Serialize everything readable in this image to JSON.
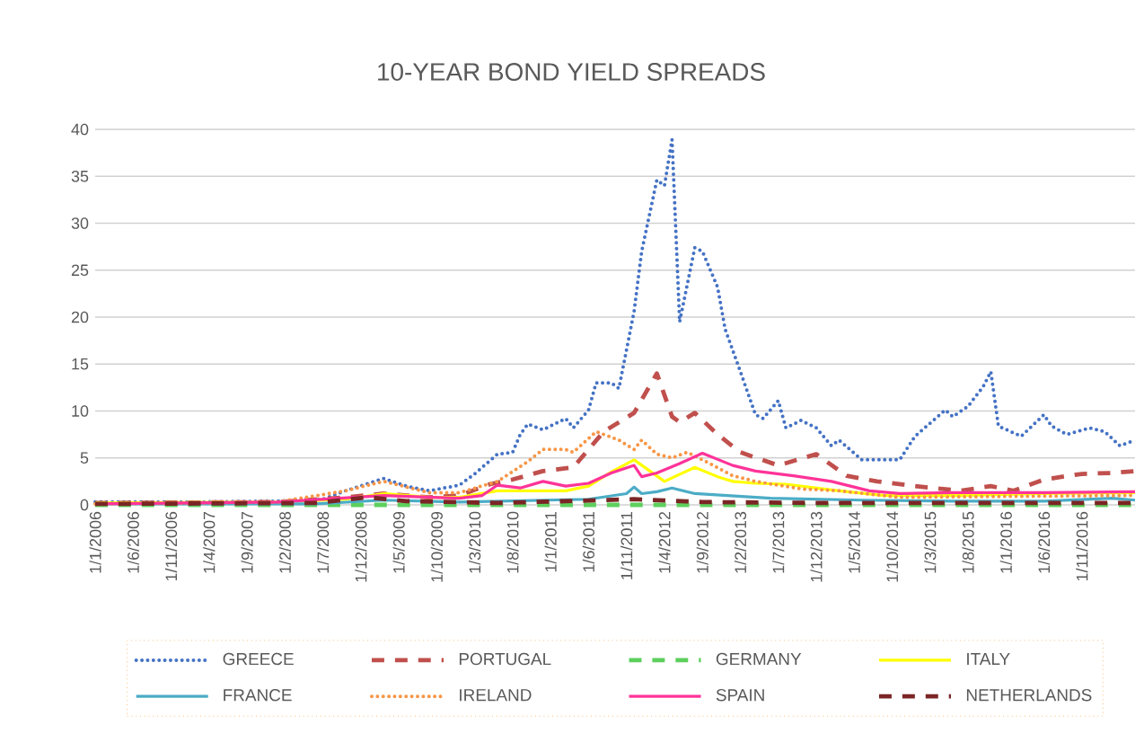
{
  "chart_data": {
    "type": "line",
    "title": "10-YEAR BOND YIELD SPREADS",
    "xlim": [
      "2006-01",
      "2017-06"
    ],
    "xticks": [
      {
        "value": "2006-01",
        "label": "1/1/2006"
      },
      {
        "value": "2006-06",
        "label": "1/6/2006"
      },
      {
        "value": "2006-11",
        "label": "1/11/2006"
      },
      {
        "value": "2007-04",
        "label": "1/4/2007"
      },
      {
        "value": "2007-09",
        "label": "1/9/2007"
      },
      {
        "value": "2008-02",
        "label": "1/2/2008"
      },
      {
        "value": "2008-07",
        "label": "1/7/2008"
      },
      {
        "value": "2008-12",
        "label": "1/12/2008"
      },
      {
        "value": "2009-05",
        "label": "1/5/2009"
      },
      {
        "value": "2009-10",
        "label": "1/10/2009"
      },
      {
        "value": "2010-03",
        "label": "1/3/2010"
      },
      {
        "value": "2010-08",
        "label": "1/8/2010"
      },
      {
        "value": "2011-01",
        "label": "1/1/2011"
      },
      {
        "value": "2011-06",
        "label": "1/6/2011"
      },
      {
        "value": "2011-11",
        "label": "1/11/2011"
      },
      {
        "value": "2012-04",
        "label": "1/4/2012"
      },
      {
        "value": "2012-09",
        "label": "1/9/2012"
      },
      {
        "value": "2013-02",
        "label": "1/2/2013"
      },
      {
        "value": "2013-07",
        "label": "1/7/2013"
      },
      {
        "value": "2013-12",
        "label": "1/12/2013"
      },
      {
        "value": "2014-05",
        "label": "1/5/2014"
      },
      {
        "value": "2014-10",
        "label": "1/10/2014"
      },
      {
        "value": "2015-03",
        "label": "1/3/2015"
      },
      {
        "value": "2015-08",
        "label": "1/8/2015"
      },
      {
        "value": "2016-01",
        "label": "1/1/2016"
      },
      {
        "value": "2016-06",
        "label": "1/6/2016"
      },
      {
        "value": "2016-11",
        "label": "1/11/2016"
      }
    ],
    "ylim": [
      0,
      40
    ],
    "yticks": [
      0,
      5,
      10,
      15,
      20,
      25,
      30,
      35,
      40
    ],
    "grid": "y",
    "legend": "bottom",
    "marker": "none",
    "series": [
      {
        "name": "GREECE",
        "color": "#4472c4",
        "line_style": "dotted",
        "x": [
          "2006-01",
          "2007-01",
          "2008-01",
          "2008-07",
          "2008-10",
          "2009-01",
          "2009-03",
          "2009-06",
          "2009-09",
          "2010-01",
          "2010-03",
          "2010-06",
          "2010-08",
          "2010-09",
          "2010-10",
          "2010-12",
          "2011-03",
          "2011-04",
          "2011-06",
          "2011-07",
          "2011-09",
          "2011-10",
          "2011-12",
          "2012-01",
          "2012-03",
          "2012-04",
          "2012-05",
          "2012-06",
          "2012-08",
          "2012-09",
          "2012-11",
          "2012-12",
          "2013-02",
          "2013-04",
          "2013-05",
          "2013-07",
          "2013-08",
          "2013-10",
          "2013-12",
          "2014-02",
          "2014-03",
          "2014-06",
          "2014-11",
          "2015-01",
          "2015-05",
          "2015-06",
          "2015-08",
          "2015-10",
          "2015-11",
          "2015-12",
          "2016-03",
          "2016-06",
          "2016-07",
          "2016-09",
          "2016-12",
          "2017-02",
          "2017-04",
          "2017-06"
        ],
        "values": [
          0.3,
          0.3,
          0.4,
          0.6,
          1.5,
          2.3,
          2.8,
          2.0,
          1.5,
          2.1,
          3.3,
          5.4,
          5.6,
          7.5,
          8.6,
          8.0,
          9.2,
          8.2,
          10.1,
          13,
          13,
          12.4,
          20.6,
          27,
          34.6,
          34,
          38.9,
          19.5,
          27.4,
          27,
          23.2,
          18.7,
          14.2,
          9.6,
          9.2,
          11.1,
          8.2,
          9.0,
          8.2,
          6.3,
          6.9,
          4.8,
          4.8,
          7.3,
          10.1,
          9.4,
          10.5,
          12.6,
          14.2,
          8.4,
          7.3,
          9.6,
          8.4,
          7.5,
          8.2,
          7.8,
          6.3,
          6.9
        ]
      },
      {
        "name": "PORTUGAL",
        "color": "#c0504d",
        "line_style": "dashed",
        "x": [
          "2006-01",
          "2008-01",
          "2008-10",
          "2009-03",
          "2009-09",
          "2010-01",
          "2010-05",
          "2010-08",
          "2010-12",
          "2011-04",
          "2011-08",
          "2011-12",
          "2012-03",
          "2012-05",
          "2012-06",
          "2012-08",
          "2012-11",
          "2013-02",
          "2013-07",
          "2013-12",
          "2014-04",
          "2014-08",
          "2015-01",
          "2015-07",
          "2015-11",
          "2016-02",
          "2016-06",
          "2016-11",
          "2017-03",
          "2017-06"
        ],
        "values": [
          0.2,
          0.3,
          0.8,
          1.2,
          0.8,
          1.0,
          2.2,
          2.7,
          3.6,
          4.0,
          7.8,
          9.8,
          14.0,
          9.4,
          8.8,
          9.8,
          7.5,
          5.6,
          4.2,
          5.4,
          3.1,
          2.5,
          2.0,
          1.5,
          2.0,
          1.5,
          2.7,
          3.3,
          3.4,
          3.6
        ]
      },
      {
        "name": "GERMANY",
        "color": "#5ccf5c",
        "line_style": "dashed",
        "x": [
          "2006-01",
          "2017-06"
        ],
        "values": [
          0,
          0
        ]
      },
      {
        "name": "ITALY",
        "color": "#ffff00",
        "line_style": "solid",
        "x": [
          "2006-01",
          "2008-01",
          "2008-10",
          "2009-03",
          "2009-09",
          "2010-01",
          "2010-06",
          "2011-03",
          "2011-06",
          "2011-09",
          "2011-12",
          "2012-04",
          "2012-08",
          "2012-11",
          "2013-01",
          "2013-04",
          "2013-08",
          "2014-03",
          "2014-09",
          "2015-06",
          "2016-06",
          "2017-06"
        ],
        "values": [
          0.2,
          0.3,
          0.6,
          1.2,
          0.8,
          0.8,
          1.5,
          1.5,
          2.0,
          3.5,
          4.8,
          2.5,
          4.0,
          3.0,
          2.5,
          2.3,
          2.2,
          1.5,
          1.0,
          1.0,
          1.2,
          1.3
        ]
      },
      {
        "name": "FRANCE",
        "color": "#4bacc6",
        "line_style": "solid",
        "x": [
          "2006-01",
          "2008-06",
          "2009-03",
          "2010-01",
          "2011-06",
          "2011-11",
          "2011-12",
          "2012-01",
          "2012-03",
          "2012-05",
          "2012-08",
          "2013-06",
          "2014-06",
          "2015-06",
          "2016-06",
          "2017-03",
          "2017-06"
        ],
        "values": [
          0.1,
          0.1,
          0.5,
          0.3,
          0.6,
          1.2,
          1.9,
          1.2,
          1.4,
          1.8,
          1.2,
          0.7,
          0.5,
          0.4,
          0.4,
          0.7,
          0.5
        ]
      },
      {
        "name": "IRELAND",
        "color": "#f79646",
        "line_style": "dotted",
        "x": [
          "2006-01",
          "2008-01",
          "2008-10",
          "2009-03",
          "2009-09",
          "2010-01",
          "2010-06",
          "2010-10",
          "2010-12",
          "2011-03",
          "2011-04",
          "2011-07",
          "2011-10",
          "2011-12",
          "2012-01",
          "2012-03",
          "2012-05",
          "2012-07",
          "2012-10",
          "2013-01",
          "2013-04",
          "2013-10",
          "2014-03",
          "2014-11",
          "2016-01",
          "2017-06"
        ],
        "values": [
          0.1,
          0.3,
          1.5,
          2.5,
          1.3,
          1.3,
          2.5,
          4.6,
          5.9,
          5.9,
          5.6,
          7.8,
          6.9,
          5.9,
          6.9,
          5.4,
          5.0,
          5.6,
          4.4,
          3.1,
          2.5,
          1.7,
          1.5,
          0.8,
          0.9,
          1.0
        ]
      },
      {
        "name": "SPAIN",
        "color": "#ff3399",
        "line_style": "solid",
        "x": [
          "2006-01",
          "2008-01",
          "2009-03",
          "2010-01",
          "2010-04",
          "2010-06",
          "2010-09",
          "2010-12",
          "2011-03",
          "2011-06",
          "2011-09",
          "2011-12",
          "2012-01",
          "2012-03",
          "2012-06",
          "2012-09",
          "2013-01",
          "2013-04",
          "2013-09",
          "2014-02",
          "2014-07",
          "2014-11",
          "2015-06",
          "2016-06",
          "2017-06"
        ],
        "values": [
          0.1,
          0.3,
          1.0,
          0.7,
          1.0,
          2.1,
          1.8,
          2.5,
          2.0,
          2.3,
          3.4,
          4.2,
          3.0,
          3.4,
          4.4,
          5.5,
          4.2,
          3.6,
          3.1,
          2.5,
          1.5,
          1.2,
          1.3,
          1.3,
          1.4
        ]
      },
      {
        "name": "NETHERLANDS",
        "color": "#7b2525",
        "line_style": "dashed",
        "x": [
          "2006-01",
          "2008-06",
          "2009-01",
          "2009-06",
          "2010-06",
          "2011-12",
          "2012-03",
          "2012-09",
          "2014-01",
          "2017-06"
        ],
        "values": [
          0.1,
          0.2,
          0.8,
          0.4,
          0.2,
          0.6,
          0.5,
          0.3,
          0.2,
          0.2
        ]
      }
    ]
  }
}
